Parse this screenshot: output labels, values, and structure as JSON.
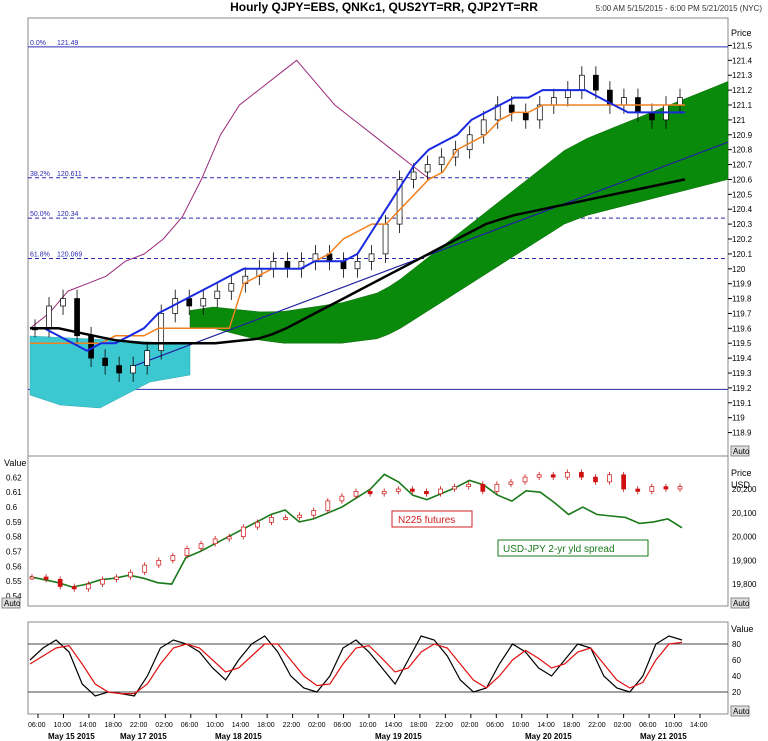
{
  "header": {
    "title": "Hourly QJPY=EBS, QNKc1, QUS2YT=RR, QJP2YT=RR",
    "timestamp": "5:00 AM 5/15/2015 - 6:00 PM 5/21/2015 (NYC)"
  },
  "panel_labels": {
    "price": "Price",
    "value": "Value",
    "usd": "USD",
    "auto": "Auto"
  },
  "chart_data": [
    {
      "type": "line",
      "description_pane": "main",
      "y_ticks": [
        "121.5",
        "121.4",
        "121.3",
        "121.2",
        "121.1",
        "121",
        "120.9",
        "120.8",
        "120.7",
        "120.6",
        "120.5",
        "120.4",
        "120.3",
        "120.2",
        "120.1",
        "120",
        "119.9",
        "119.8",
        "119.7",
        "119.6",
        "119.5",
        "119.4",
        "119.3",
        "119.2",
        "119.1",
        "119",
        "118.9"
      ],
      "ylim": [
        118.85,
        121.55
      ],
      "fib_levels": [
        {
          "label": "0.0%",
          "value": "121.49"
        },
        {
          "label": "38.2%",
          "value": "120.611"
        },
        {
          "label": "50.0%",
          "value": "120.34"
        },
        {
          "label": "61.8%",
          "value": "120.069"
        },
        {
          "label": "100.0%",
          "value": "119.19"
        }
      ],
      "x_ticks": [
        "06:00",
        "10:00",
        "14:00",
        "18:00",
        "22:00",
        "02:00",
        "06:00",
        "10:00",
        "14:00",
        "18:00",
        "22:00",
        "02:00",
        "06:00",
        "10:00",
        "14:00",
        "18:00",
        "22:00",
        "02:00",
        "06:00",
        "10:00",
        "14:00",
        "18:00",
        "22:00",
        "02:00",
        "06:00",
        "10:00",
        "14:00"
      ],
      "date_labels": [
        "May 15 2015",
        "May 17 2015",
        "May 18 2015",
        "May 19 2015",
        "May 20 2015",
        "May 21 2015"
      ],
      "series": [
        {
          "values": [
            119.6,
            119.75,
            119.8,
            119.55,
            119.4,
            119.35,
            119.3,
            119.35,
            119.45,
            119.7,
            119.8,
            119.75,
            119.8,
            119.85,
            119.9,
            119.95,
            120.0,
            120.05,
            120.0,
            120.05,
            120.1,
            120.05,
            120.0,
            120.05,
            120.1,
            120.3,
            120.6,
            120.65,
            120.7,
            120.75,
            120.8,
            120.9,
            121.0,
            121.1,
            121.05,
            121.0,
            121.1,
            121.15,
            121.2,
            121.3,
            121.2,
            121.1,
            121.15,
            121.05,
            121.0,
            121.1,
            121.15
          ]
        },
        {
          "values": [
            119.6,
            119.6,
            119.55,
            119.5,
            119.45,
            119.5,
            119.5,
            119.55,
            119.6,
            119.7,
            119.75,
            119.8,
            119.85,
            119.9,
            119.95,
            120.0,
            120.0,
            120.0,
            120.0,
            120.0,
            120.05,
            120.05,
            120.05,
            120.1,
            120.25,
            120.4,
            120.55,
            120.7,
            120.8,
            120.85,
            120.9,
            121.0,
            121.05,
            121.1,
            121.15,
            121.15,
            121.2,
            121.2,
            121.2,
            121.2,
            121.15,
            121.1,
            121.05,
            121.05,
            121.05,
            121.05,
            121.05
          ]
        },
        {
          "values": [
            119.5,
            119.5,
            119.5,
            119.5,
            119.5,
            119.5,
            119.55,
            119.55,
            119.55,
            119.6,
            119.6,
            119.6,
            119.6,
            119.6,
            119.6,
            119.9,
            119.95,
            120.0,
            120.0,
            120.0,
            120.05,
            120.1,
            120.2,
            120.25,
            120.3,
            120.3,
            120.4,
            120.5,
            120.6,
            120.65,
            120.8,
            120.85,
            120.9,
            121.0,
            121.05,
            121.05,
            121.1,
            121.1,
            121.1,
            121.1,
            121.1,
            121.1,
            121.1,
            121.1,
            121.1,
            121.1,
            121.1
          ]
        },
        {
          "values": [
            119.6,
            119.6,
            119.6,
            119.58,
            119.56,
            119.54,
            119.52,
            119.51,
            119.5,
            119.5,
            119.5,
            119.5,
            119.5,
            119.5,
            119.51,
            119.52,
            119.53,
            119.56,
            119.6,
            119.65,
            119.7,
            119.75,
            119.8,
            119.85,
            119.9,
            119.95,
            120.0,
            120.05,
            120.1,
            120.15,
            120.2,
            120.25,
            120.3,
            120.33,
            120.36,
            120.38,
            120.4,
            120.42,
            120.44,
            120.46,
            120.48,
            120.5,
            120.52,
            120.54,
            120.56,
            120.58,
            120.6
          ]
        }
      ]
    },
    {
      "type": "line",
      "description_pane": "middle",
      "y_ticks_left": [
        "0.62",
        "0.61",
        "0.6",
        "0.59",
        "0.58",
        "0.57",
        "0.56",
        "0.55",
        "0.54"
      ],
      "y_ticks_right": [
        "20,200",
        "20,100",
        "20,000",
        "19,900",
        "19,800"
      ],
      "series": [
        {
          "name": "N225 futures",
          "values": [
            19830,
            19820,
            19790,
            19780,
            19800,
            19820,
            19830,
            19850,
            19880,
            19900,
            19920,
            19950,
            19970,
            19990,
            20000,
            20040,
            20060,
            20080,
            20080,
            20090,
            20110,
            20150,
            20170,
            20190,
            20180,
            20190,
            20200,
            20190,
            20180,
            20200,
            20210,
            20220,
            20190,
            20220,
            20230,
            20250,
            20260,
            20250,
            20270,
            20250,
            20230,
            20260,
            20200,
            20190,
            20210,
            20200,
            20210
          ]
        },
        {
          "name": "USD-JPY 2-yr yld spread",
          "values": [
            0.553,
            0.551,
            0.549,
            0.546,
            0.548,
            0.551,
            0.552,
            0.554,
            0.552,
            0.549,
            0.548,
            0.566,
            0.57,
            0.575,
            0.58,
            0.585,
            0.59,
            0.595,
            0.598,
            0.59,
            0.592,
            0.596,
            0.6,
            0.606,
            0.612,
            0.622,
            0.617,
            0.608,
            0.605,
            0.609,
            0.613,
            0.618,
            0.615,
            0.608,
            0.604,
            0.611,
            0.61,
            0.603,
            0.595,
            0.6,
            0.595,
            0.594,
            0.593,
            0.589,
            0.59,
            0.592,
            0.586
          ]
        }
      ]
    },
    {
      "type": "line",
      "description_pane": "stochastic",
      "y_ticks": [
        "80",
        "60",
        "40",
        "20"
      ],
      "ylim": [
        0,
        100
      ],
      "series": [
        {
          "values": [
            60,
            75,
            85,
            70,
            30,
            15,
            20,
            18,
            15,
            40,
            75,
            85,
            80,
            70,
            50,
            35,
            60,
            80,
            90,
            70,
            40,
            25,
            20,
            40,
            75,
            85,
            70,
            50,
            30,
            60,
            90,
            85,
            65,
            35,
            20,
            25,
            55,
            80,
            70,
            50,
            40,
            60,
            80,
            75,
            40,
            25,
            20,
            40,
            80,
            90,
            85
          ]
        },
        {
          "values": [
            55,
            65,
            75,
            78,
            55,
            30,
            20,
            18,
            18,
            30,
            55,
            75,
            80,
            75,
            60,
            45,
            50,
            65,
            80,
            80,
            60,
            40,
            28,
            30,
            55,
            75,
            78,
            62,
            45,
            50,
            70,
            80,
            75,
            55,
            35,
            25,
            40,
            60,
            72,
            62,
            50,
            55,
            70,
            75,
            55,
            35,
            25,
            32,
            60,
            80,
            82
          ]
        }
      ]
    }
  ]
}
